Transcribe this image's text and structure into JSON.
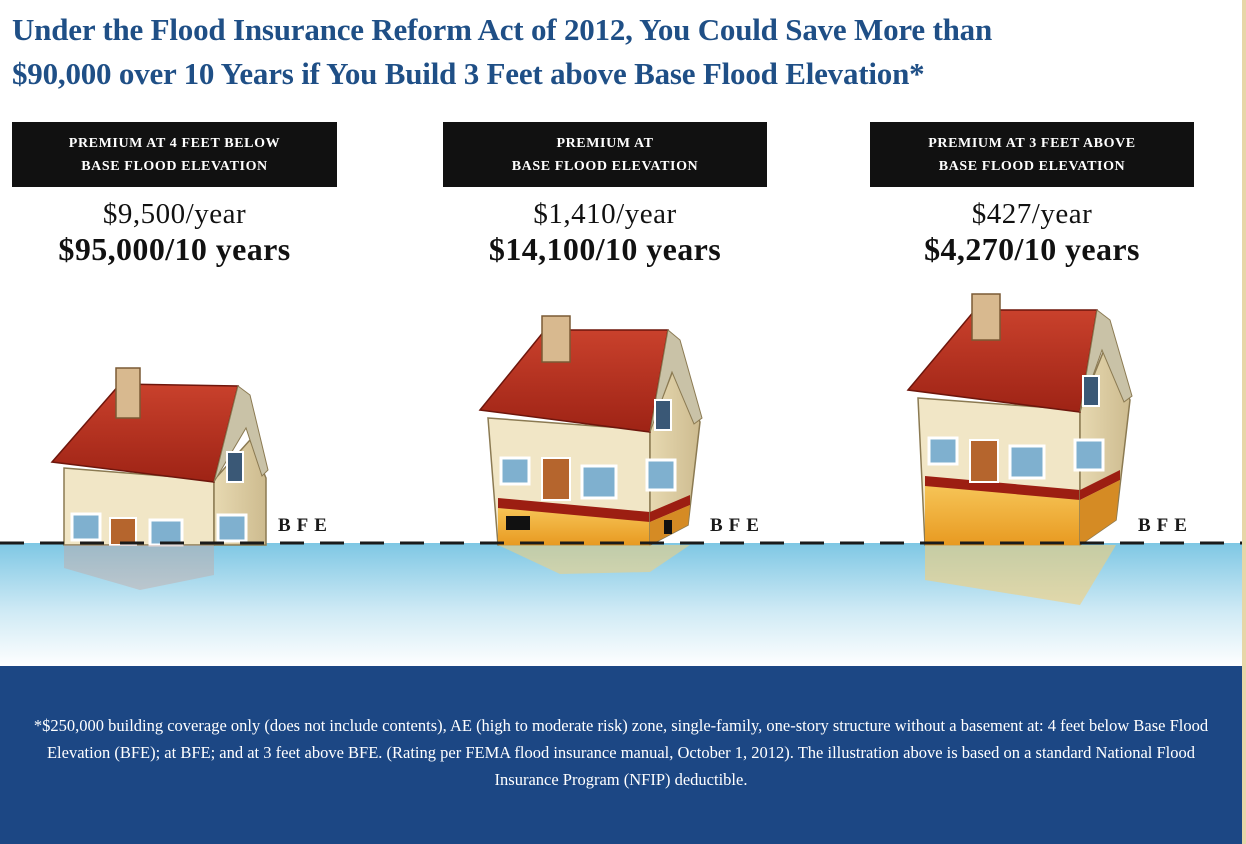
{
  "title": {
    "line1": "Under the Flood Insurance Reform Act of 2012, You Could Save More than",
    "line2": "$90,000 over 10 Years if You Build 3 Feet above Base Flood Elevation*"
  },
  "columns": [
    {
      "label_line1": "PREMIUM AT 4 FEET BELOW",
      "label_line2": "BASE FLOOD ELEVATION",
      "per_year": "$9,500/year",
      "per_decade": "$95,000/10 years"
    },
    {
      "label_line1": "PREMIUM AT",
      "label_line2": "BASE FLOOD ELEVATION",
      "per_year": "$1,410/year",
      "per_decade": "$14,100/10 years"
    },
    {
      "label_line1": "PREMIUM AT 3 FEET ABOVE",
      "label_line2": "BASE FLOOD ELEVATION",
      "per_year": "$427/year",
      "per_decade": "$4,270/10 years"
    }
  ],
  "bfe_label": "BFE",
  "footnote": "*$250,000 building coverage only (does not include contents), AE (high to moderate risk) zone, single-family, one-story structure without a basement at: 4 feet below Base Flood Elevation (BFE); at BFE; and at 3 feet above BFE. (Rating per FEMA flood insurance manual, October 1, 2012). The illustration above is based on a standard National Flood Insurance Program (NFIP) deductible.",
  "colors": {
    "title": "#1f4f86",
    "label_box": "#111111",
    "footer": "#1c4784",
    "water": "#8fd0e8",
    "roof": "#b12a1c",
    "wall": "#f1e6c6",
    "foundation": "#f3b43a"
  }
}
